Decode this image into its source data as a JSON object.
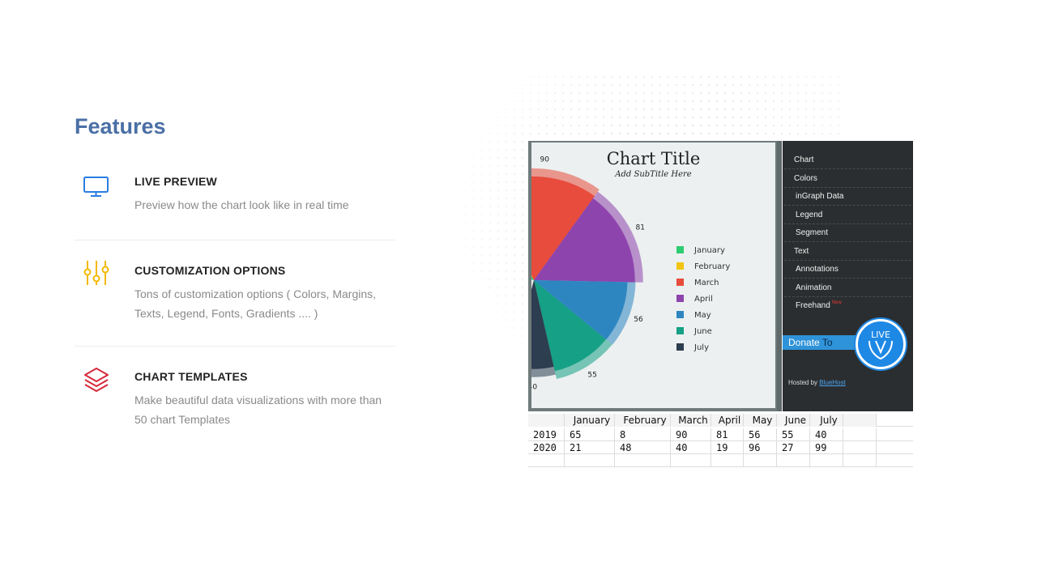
{
  "section_title": "Features",
  "features": [
    {
      "title": "LIVE PREVIEW",
      "description": "Preview how the chart look like in real time",
      "icon": "monitor-icon",
      "color": "#2a7de1"
    },
    {
      "title": "CUSTOMIZATION OPTIONS",
      "description": "Tons of customization options ( Colors, Margins, Texts, Legend, Fonts, Gradients .... )",
      "icon": "sliders-icon",
      "color": "#f5b800"
    },
    {
      "title": "CHART TEMPLATES",
      "description": "Make beautiful data visualizations with more than 50 chart Templates",
      "icon": "layers-icon",
      "color": "#d6283c"
    }
  ],
  "app": {
    "chart_title": "Chart Title",
    "chart_subtitle": "Add SubTitle Here",
    "menu": [
      "Chart",
      "Colors",
      "inGraph Data",
      "Legend",
      "Segment",
      "Text",
      "Annotations",
      "Animation",
      "Freehand"
    ],
    "menu_new_badge": "New",
    "donate_label": "Donate",
    "donate_to": "To",
    "logo_text": "LIVE GVP",
    "hosted_by": "Hosted by",
    "host_link": "BlueHost"
  },
  "chart_data": {
    "type": "pie",
    "categories": [
      "January",
      "February",
      "March",
      "April",
      "May",
      "June",
      "July"
    ],
    "values": [
      65,
      8,
      90,
      81,
      56,
      55,
      40
    ],
    "colors": [
      "#2ecc71",
      "#f1c40f",
      "#e74c3c",
      "#8e44ad",
      "#2e86c1",
      "#16a085",
      "#2c3e50"
    ],
    "title": "Chart Title",
    "subtitle": "Add SubTitle Here",
    "legend": "right"
  },
  "table": {
    "headers": [
      "",
      "January",
      "February",
      "March",
      "April",
      "May",
      "June",
      "July"
    ],
    "rows": [
      [
        "2019",
        "65",
        "8",
        "90",
        "81",
        "56",
        "55",
        "40"
      ],
      [
        "2020",
        "21",
        "48",
        "40",
        "19",
        "96",
        "27",
        "99"
      ]
    ]
  }
}
